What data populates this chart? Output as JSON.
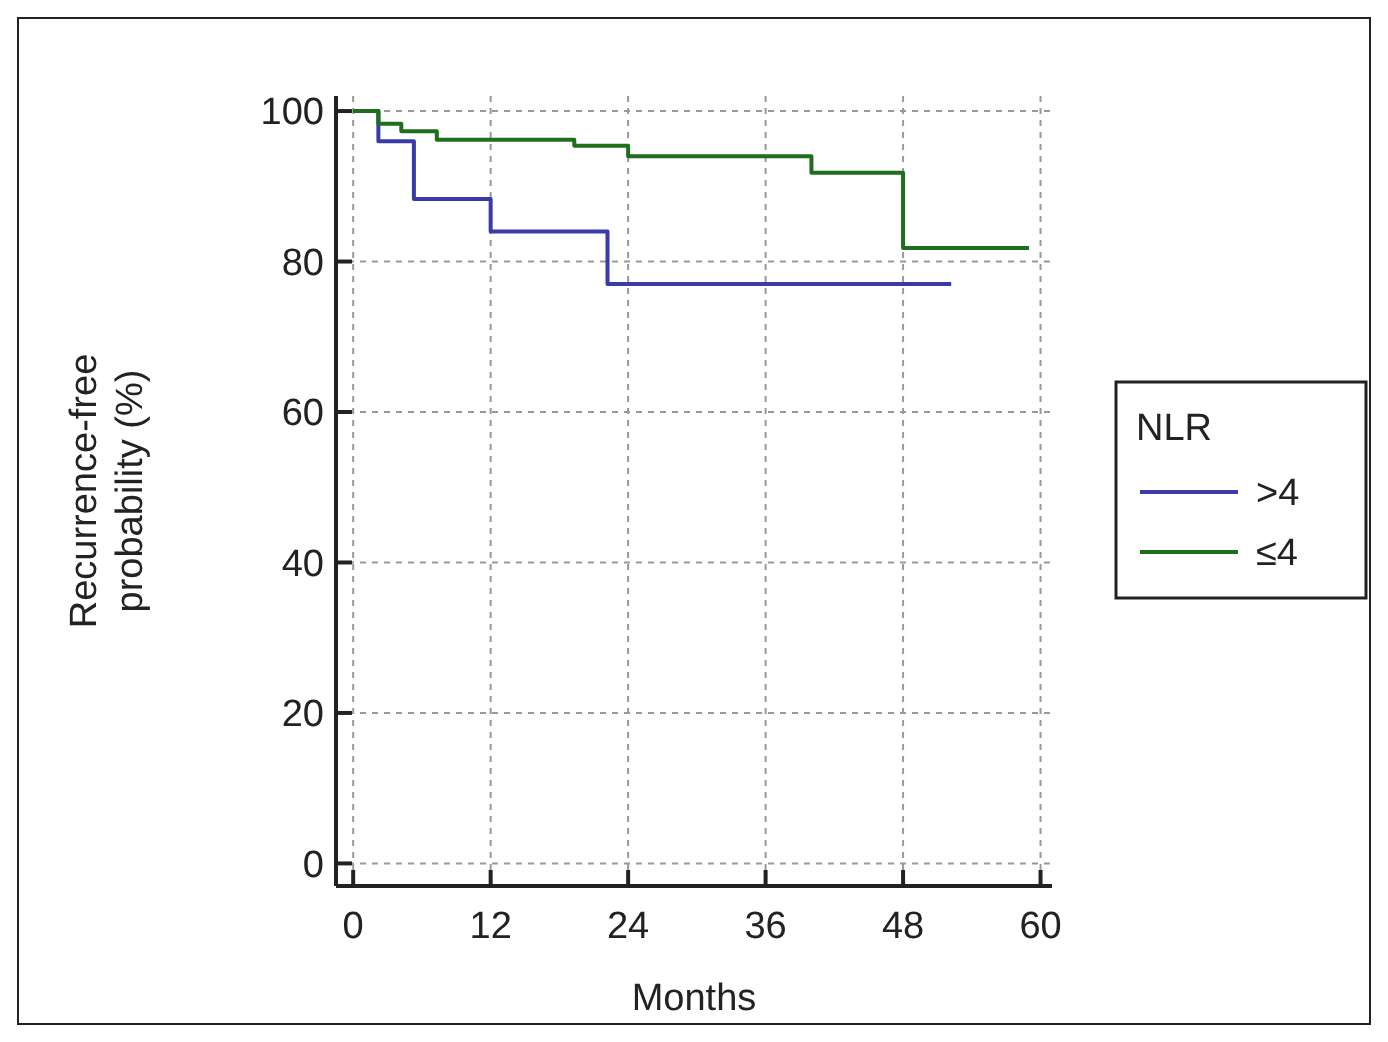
{
  "chart_data": {
    "type": "step",
    "xlabel": "Months",
    "ylabel": "Recurrence-free probability (%)",
    "legend_title": "NLR",
    "legend": "right",
    "grid": true,
    "xlim": [
      -1.5,
      61
    ],
    "ylim": [
      -3,
      102
    ],
    "xticks": [
      0,
      12,
      24,
      36,
      48,
      60
    ],
    "yticks": [
      0,
      20,
      40,
      60,
      80,
      100
    ],
    "series": [
      {
        "name": ">4",
        "color": "#3a3aa8",
        "x": [
          0,
          2.2,
          5.3,
          12,
          22.2,
          52.2
        ],
        "values": [
          100,
          96,
          88.3,
          84,
          77,
          77
        ]
      },
      {
        "name": "≤4",
        "color": "#1e6e1e",
        "x": [
          0,
          2.2,
          4.2,
          7.3,
          19.3,
          24,
          40,
          48,
          59
        ],
        "values": [
          100,
          98.3,
          97.3,
          96.2,
          95.4,
          94,
          91.8,
          81.8,
          81.8
        ]
      }
    ]
  }
}
